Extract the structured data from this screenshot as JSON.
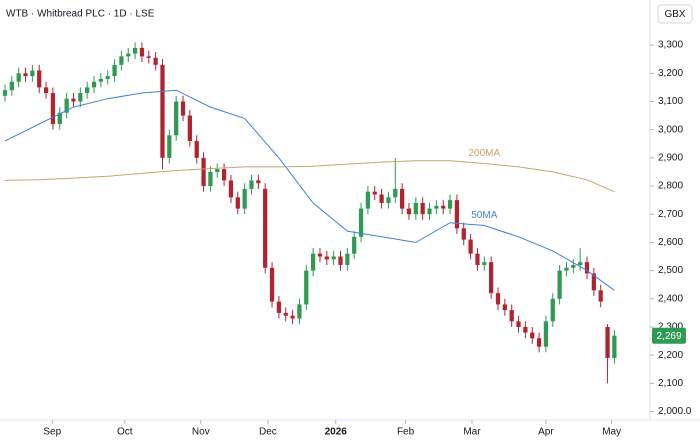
{
  "chart_data": {
    "type": "candlestick",
    "title": "WTB · Whitbread PLC · 1D · LSE",
    "currency": "GBX",
    "up_color": "#2e9a52",
    "down_color": "#b2232f",
    "open": [
      3120,
      3140,
      3170,
      3200,
      3190,
      3210,
      3150,
      3130,
      3020,
      3060,
      3110,
      3100,
      3130,
      3150,
      3170,
      3180,
      3190,
      3230,
      3260,
      3270,
      3290,
      3260,
      3255,
      3230,
      2900,
      2980,
      3100,
      3050,
      2960,
      2900,
      2800,
      2850,
      2860,
      2820,
      2760,
      2720,
      2790,
      2820,
      2790,
      2510,
      2390,
      2350,
      2340,
      2330,
      2380,
      2500,
      2560,
      2550,
      2540,
      2550,
      2520,
      2560,
      2620,
      2720,
      2780,
      2770,
      2740,
      2760,
      2790,
      2720,
      2700,
      2740,
      2700,
      2720,
      2730,
      2720,
      2750,
      2650,
      2610,
      2560,
      2520,
      2530,
      2420,
      2380,
      2360,
      2320,
      2300,
      2280,
      2260,
      2230,
      2320,
      2400,
      2500,
      2510,
      2520,
      2530,
      2490,
      2430,
      2300,
      2190
    ],
    "high": [
      3160,
      3190,
      3220,
      3220,
      3230,
      3230,
      3170,
      3150,
      3080,
      3130,
      3130,
      3150,
      3170,
      3190,
      3200,
      3210,
      3250,
      3280,
      3290,
      3310,
      3310,
      3280,
      3275,
      3250,
      3000,
      3120,
      3120,
      3070,
      2980,
      2920,
      2870,
      2880,
      2880,
      2840,
      2780,
      2810,
      2840,
      2840,
      2810,
      2530,
      2410,
      2370,
      2360,
      2400,
      2520,
      2580,
      2580,
      2570,
      2570,
      2570,
      2580,
      2640,
      2740,
      2800,
      2800,
      2790,
      2780,
      2900,
      2810,
      2740,
      2760,
      2760,
      2740,
      2750,
      2750,
      2770,
      2770,
      2670,
      2630,
      2580,
      2550,
      2550,
      2440,
      2400,
      2380,
      2340,
      2320,
      2300,
      2280,
      2340,
      2420,
      2520,
      2530,
      2540,
      2580,
      2550,
      2510,
      2450,
      2310,
      2290
    ],
    "low": [
      3100,
      3120,
      3150,
      3170,
      3170,
      3130,
      3110,
      3000,
      3000,
      3040,
      3080,
      3080,
      3110,
      3130,
      3150,
      3160,
      3170,
      3210,
      3240,
      3250,
      3240,
      3235,
      3210,
      2860,
      2880,
      2960,
      3030,
      2940,
      2880,
      2780,
      2780,
      2830,
      2800,
      2740,
      2700,
      2700,
      2770,
      2790,
      2490,
      2370,
      2330,
      2320,
      2310,
      2310,
      2360,
      2480,
      2530,
      2520,
      2520,
      2500,
      2500,
      2540,
      2600,
      2700,
      2750,
      2720,
      2720,
      2740,
      2700,
      2680,
      2680,
      2680,
      2680,
      2700,
      2700,
      2700,
      2630,
      2590,
      2540,
      2500,
      2500,
      2400,
      2360,
      2340,
      2300,
      2280,
      2260,
      2240,
      2210,
      2210,
      2300,
      2380,
      2480,
      2490,
      2500,
      2470,
      2410,
      2370,
      2100,
      2170
    ],
    "close": [
      3140,
      3170,
      3200,
      3190,
      3210,
      3150,
      3130,
      3020,
      3060,
      3110,
      3100,
      3130,
      3150,
      3170,
      3180,
      3190,
      3230,
      3260,
      3270,
      3290,
      3260,
      3255,
      3230,
      2900,
      2980,
      3100,
      3050,
      2960,
      2900,
      2800,
      2850,
      2860,
      2820,
      2760,
      2720,
      2790,
      2820,
      2810,
      2510,
      2390,
      2350,
      2340,
      2330,
      2380,
      2500,
      2560,
      2550,
      2540,
      2550,
      2520,
      2560,
      2620,
      2720,
      2780,
      2770,
      2740,
      2760,
      2790,
      2720,
      2700,
      2740,
      2700,
      2720,
      2730,
      2720,
      2750,
      2650,
      2610,
      2560,
      2520,
      2530,
      2420,
      2380,
      2360,
      2320,
      2300,
      2280,
      2260,
      2230,
      2320,
      2400,
      2500,
      2510,
      2520,
      2530,
      2490,
      2430,
      2390,
      2190,
      2269
    ],
    "series": [
      {
        "name": "50MA",
        "color": "#3f7fe0",
        "x": [
          0,
          5,
          10,
          15,
          20,
          25,
          30,
          35,
          40,
          45,
          50,
          55,
          60,
          65,
          70,
          75,
          80,
          85,
          89
        ],
        "values": [
          2960,
          3020,
          3080,
          3110,
          3130,
          3140,
          3080,
          3040,
          2900,
          2740,
          2640,
          2620,
          2600,
          2670,
          2660,
          2620,
          2570,
          2500,
          2430
        ]
      },
      {
        "name": "200MA",
        "color": "#c9a56a",
        "x": [
          0,
          5,
          10,
          15,
          20,
          25,
          30,
          35,
          40,
          45,
          50,
          55,
          60,
          65,
          70,
          75,
          80,
          85,
          89
        ],
        "values": [
          2820,
          2822,
          2828,
          2835,
          2845,
          2855,
          2862,
          2868,
          2868,
          2870,
          2878,
          2885,
          2890,
          2890,
          2880,
          2868,
          2850,
          2822,
          2780
        ]
      }
    ],
    "price_label": {
      "value": 2269,
      "label": "2,269"
    },
    "xlim": [
      -0.73,
      94.2
    ],
    "ylim": [
      1970,
      3460
    ],
    "xticks": [
      {
        "value": 6.9,
        "label": "Sep"
      },
      {
        "value": 17.5,
        "label": "Oct"
      },
      {
        "value": 28.6,
        "label": "Nov"
      },
      {
        "value": 38.4,
        "label": "Dec"
      },
      {
        "value": 48.3,
        "label": "2026"
      },
      {
        "value": 58.5,
        "label": "Feb"
      },
      {
        "value": 68.2,
        "label": "Mar"
      },
      {
        "value": 79,
        "label": "Apr"
      },
      {
        "value": 88.6,
        "label": "May"
      }
    ],
    "yticks": [
      {
        "value": 2000,
        "label": "2,000.0"
      },
      {
        "value": 2100,
        "label": "2,100"
      },
      {
        "value": 2200,
        "label": "2,200"
      },
      {
        "value": 2300,
        "label": "2,300"
      },
      {
        "value": 2400,
        "label": "2,400"
      },
      {
        "value": 2500,
        "label": "2,500"
      },
      {
        "value": 2600,
        "label": "2,600"
      },
      {
        "value": 2700,
        "label": "2,700"
      },
      {
        "value": 2800,
        "label": "2,800"
      },
      {
        "value": 2900,
        "label": "2,900"
      },
      {
        "value": 3000,
        "label": "3,000"
      },
      {
        "value": 3100,
        "label": "3,100"
      },
      {
        "value": 3200,
        "label": "3,200"
      },
      {
        "value": 3300,
        "label": "3,300"
      }
    ]
  }
}
